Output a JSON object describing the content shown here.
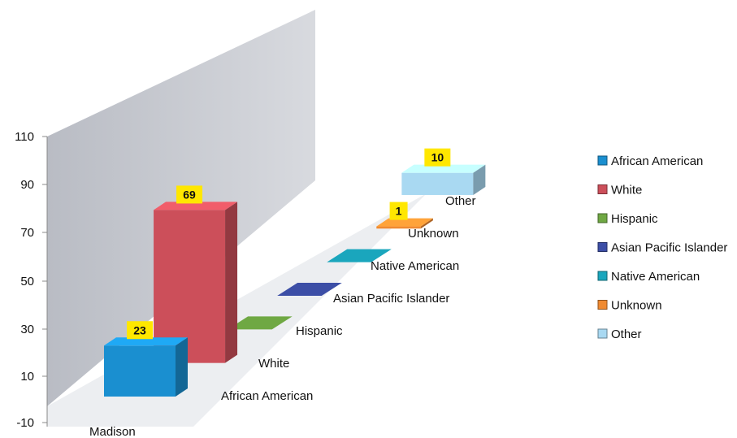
{
  "chart_data": {
    "type": "bar",
    "style": "3d-column",
    "group_label": "Madison",
    "categories": [
      "African American",
      "White",
      "Hispanic",
      "Asian Pacific Islander",
      "Native American",
      "Unknown",
      "Other"
    ],
    "values": [
      23,
      69,
      0,
      0,
      0,
      1,
      10
    ],
    "data_labels": [
      "23",
      "69",
      "",
      "",
      "",
      "1",
      "10"
    ],
    "colors": [
      "#1a8fd0",
      "#cc4f5a",
      "#6fa843",
      "#3c4ea6",
      "#1aa6bd",
      "#f08a30",
      "#a9d9f2"
    ],
    "y_ticks": [
      "110",
      "90",
      "70",
      "50",
      "30",
      "10",
      "-10"
    ],
    "ylim": [
      -10,
      110
    ],
    "legend": {
      "position": "right",
      "entries": [
        "African American",
        "White",
        "Hispanic",
        "Asian Pacific Islander",
        "Native American",
        "Unknown",
        "Other"
      ]
    },
    "title": "",
    "xlabel": "",
    "ylabel": ""
  }
}
